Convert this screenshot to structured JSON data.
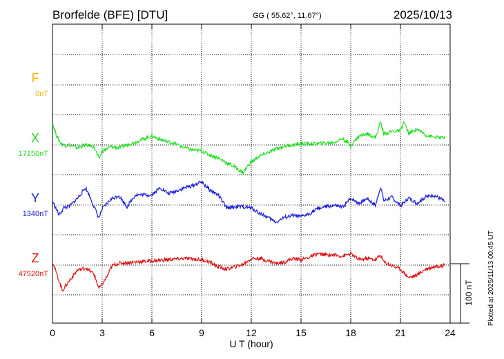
{
  "header": {
    "station": "Brorfelde (BFE)  [DTU]",
    "coords": "GG ( 55.62°,  11.67°)",
    "date": "2025/10/13"
  },
  "footer": {
    "plotted_note": "Plotted at 2025/11/13 00:45 UT"
  },
  "scale_bar": {
    "label": "100 nT",
    "value_nT": 100
  },
  "chart_data": {
    "type": "line",
    "xlabel": "U T (hour)",
    "xlim": [
      0,
      24
    ],
    "x_ticks": [
      0,
      3,
      6,
      9,
      12,
      15,
      18,
      21,
      24
    ],
    "x_tick_labels": [
      "0",
      "3",
      "6",
      "9",
      "12",
      "15",
      "18",
      "21",
      "24"
    ],
    "grid": true,
    "series": [
      {
        "name": "F",
        "baseline_label": "0nT",
        "color": "#f5b400",
        "points": []
      },
      {
        "name": "X",
        "baseline_label": "17150nT",
        "color": "#22dd22",
        "points": [
          [
            0,
            36
          ],
          [
            0.25,
            14
          ],
          [
            0.5,
            2
          ],
          [
            0.75,
            -2
          ],
          [
            1,
            -1
          ],
          [
            1.5,
            -6
          ],
          [
            2,
            -1
          ],
          [
            2.5,
            -4
          ],
          [
            2.8,
            -24
          ],
          [
            3,
            -12
          ],
          [
            3.5,
            -4
          ],
          [
            4,
            -6
          ],
          [
            5,
            4
          ],
          [
            6,
            14
          ],
          [
            6.5,
            8
          ],
          [
            7,
            4
          ],
          [
            7.5,
            0
          ],
          [
            8,
            -6
          ],
          [
            8.5,
            -10
          ],
          [
            9,
            -11
          ],
          [
            9.5,
            -18
          ],
          [
            10,
            -23
          ],
          [
            10.5,
            -31
          ],
          [
            11,
            -38
          ],
          [
            11.5,
            -48
          ],
          [
            11.8,
            -36
          ],
          [
            12,
            -30
          ],
          [
            12.5,
            -20
          ],
          [
            13,
            -14
          ],
          [
            13.5,
            -8
          ],
          [
            14,
            -3
          ],
          [
            14.5,
            -1
          ],
          [
            15,
            1
          ],
          [
            16,
            1
          ],
          [
            17,
            3
          ],
          [
            17.5,
            10
          ],
          [
            18,
            -2
          ],
          [
            18.5,
            14
          ],
          [
            19,
            18
          ],
          [
            19.5,
            11
          ],
          [
            19.8,
            38
          ],
          [
            20,
            17
          ],
          [
            20.5,
            22
          ],
          [
            21,
            22
          ],
          [
            21.2,
            38
          ],
          [
            21.5,
            18
          ],
          [
            22,
            26
          ],
          [
            22.5,
            16
          ],
          [
            23,
            12
          ],
          [
            23.5,
            11
          ],
          [
            23.7,
            11
          ]
        ]
      },
      {
        "name": "Y",
        "baseline_label": "1340nT",
        "color": "#1a1ad8",
        "points": [
          [
            0,
            5
          ],
          [
            0.4,
            -18
          ],
          [
            0.7,
            -5
          ],
          [
            1,
            -4
          ],
          [
            1.5,
            10
          ],
          [
            2,
            28
          ],
          [
            2.3,
            10
          ],
          [
            2.8,
            -23
          ],
          [
            3,
            -8
          ],
          [
            3.5,
            8
          ],
          [
            4,
            15
          ],
          [
            4.5,
            -4
          ],
          [
            5,
            16
          ],
          [
            6,
            16
          ],
          [
            6.5,
            28
          ],
          [
            7,
            18
          ],
          [
            8,
            28
          ],
          [
            8.5,
            32
          ],
          [
            9,
            38
          ],
          [
            9.5,
            24
          ],
          [
            10,
            16
          ],
          [
            10.5,
            -6
          ],
          [
            11,
            -4
          ],
          [
            11.5,
            -4
          ],
          [
            12,
            -6
          ],
          [
            12.5,
            -15
          ],
          [
            13,
            -22
          ],
          [
            13.5,
            -30
          ],
          [
            14,
            -22
          ],
          [
            14.5,
            -19
          ],
          [
            15,
            -21
          ],
          [
            15.5,
            -16
          ],
          [
            16,
            -7
          ],
          [
            16.5,
            -4
          ],
          [
            17,
            -2
          ],
          [
            17.5,
            -5
          ],
          [
            18,
            10
          ],
          [
            18.5,
            2
          ],
          [
            19,
            10
          ],
          [
            19.5,
            -2
          ],
          [
            19.8,
            30
          ],
          [
            20,
            6
          ],
          [
            20.5,
            12
          ],
          [
            21,
            -3
          ],
          [
            21.5,
            11
          ],
          [
            22,
            2
          ],
          [
            22.5,
            12
          ],
          [
            23,
            16
          ],
          [
            23.5,
            8
          ],
          [
            23.7,
            4
          ]
        ]
      },
      {
        "name": "Z",
        "baseline_label": "47520nT",
        "color": "#e01010",
        "points": [
          [
            0,
            5
          ],
          [
            0.3,
            -20
          ],
          [
            0.6,
            -44
          ],
          [
            1,
            -28
          ],
          [
            1.5,
            -10
          ],
          [
            2,
            -6
          ],
          [
            2.5,
            -16
          ],
          [
            2.8,
            -40
          ],
          [
            3,
            -34
          ],
          [
            3.3,
            -20
          ],
          [
            3.6,
            -2
          ],
          [
            4,
            2
          ],
          [
            5,
            4
          ],
          [
            6,
            6
          ],
          [
            7,
            8
          ],
          [
            8,
            10
          ],
          [
            9,
            8
          ],
          [
            9.5,
            4
          ],
          [
            10,
            -4
          ],
          [
            10.5,
            -8
          ],
          [
            11,
            -4
          ],
          [
            11.5,
            0
          ],
          [
            12,
            10
          ],
          [
            12.5,
            10
          ],
          [
            13,
            6
          ],
          [
            13.5,
            2
          ],
          [
            14,
            4
          ],
          [
            14.5,
            10
          ],
          [
            15,
            8
          ],
          [
            15.5,
            12
          ],
          [
            16,
            18
          ],
          [
            16.5,
            16
          ],
          [
            17,
            16
          ],
          [
            17.5,
            14
          ],
          [
            18,
            18
          ],
          [
            18.5,
            8
          ],
          [
            19,
            10
          ],
          [
            19.5,
            8
          ],
          [
            19.8,
            16
          ],
          [
            20,
            4
          ],
          [
            20.5,
            -2
          ],
          [
            21,
            -8
          ],
          [
            21.5,
            -22
          ],
          [
            22,
            -18
          ],
          [
            22.5,
            -8
          ],
          [
            23,
            -4
          ],
          [
            23.5,
            -2
          ],
          [
            23.7,
            0
          ]
        ]
      }
    ]
  }
}
